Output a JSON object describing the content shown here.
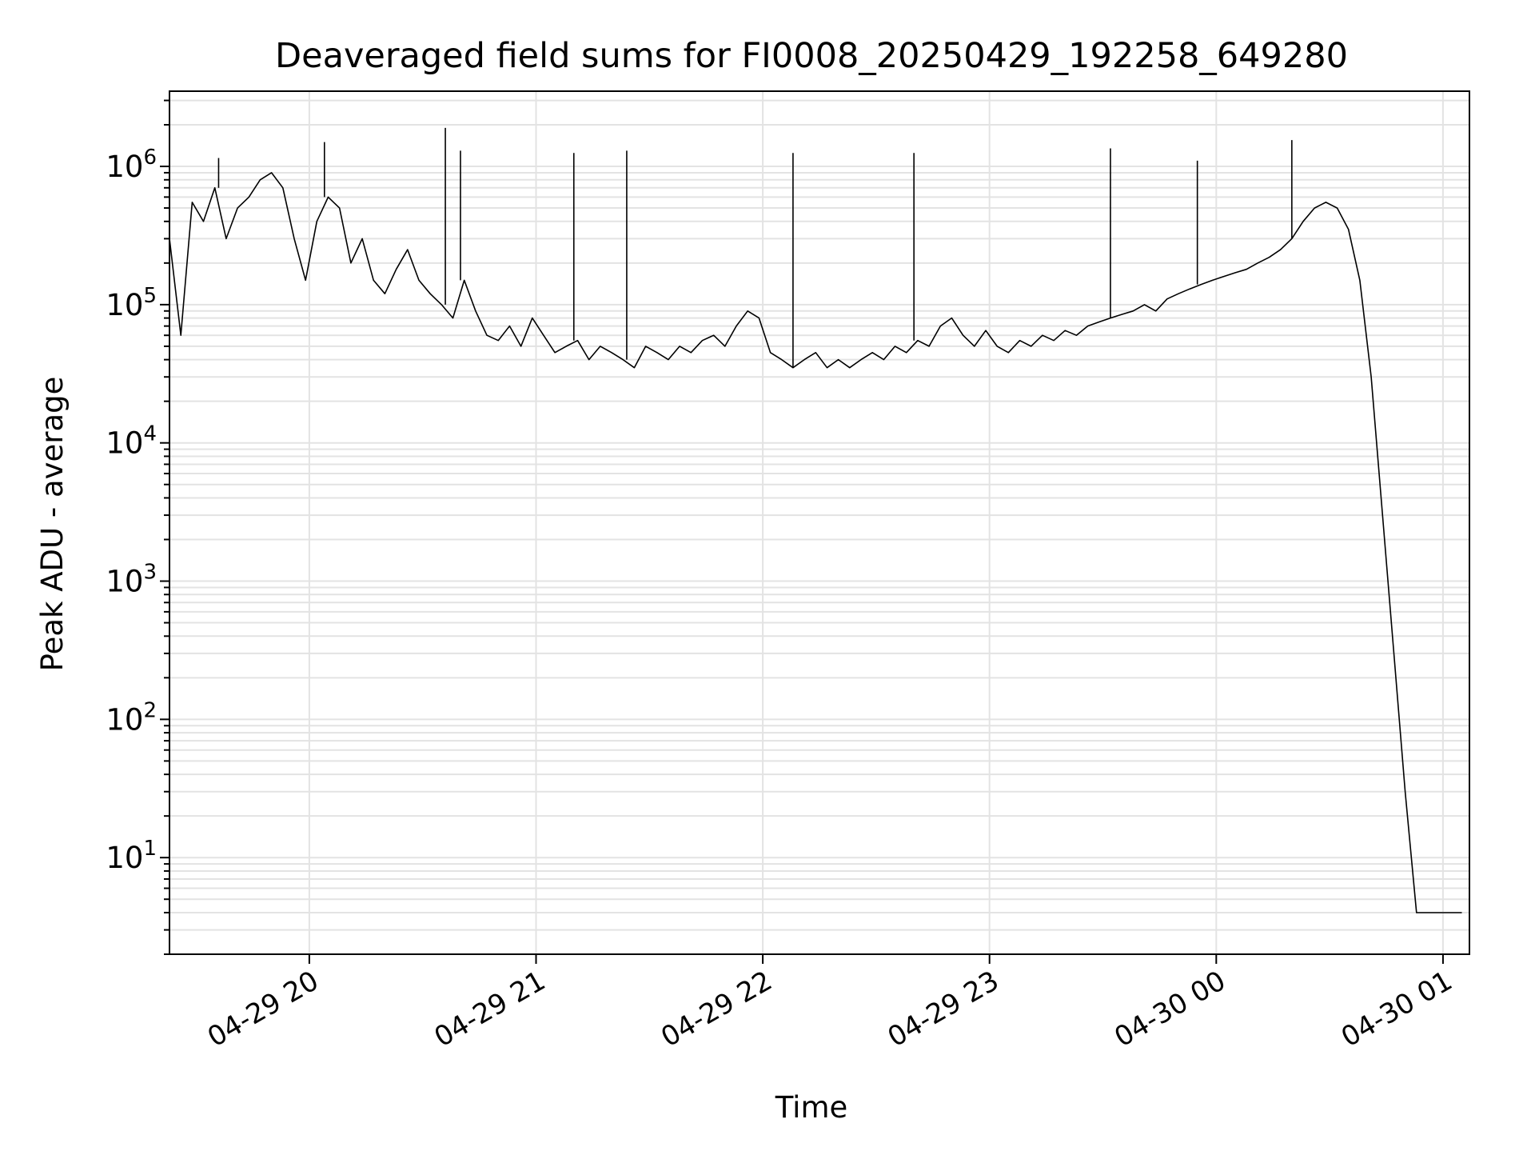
{
  "chart_data": {
    "type": "line",
    "title": "Deaveraged field sums for FI0008_20250429_192258_649280",
    "xlabel": "Time",
    "ylabel": "Peak ADU - average",
    "yscale": "log",
    "ylim": [
      2,
      3500000
    ],
    "xlim": [
      "2025-04-29 19:23",
      "2025-04-30 01:07"
    ],
    "grid": true,
    "line_color": "#000000",
    "grid_color": "#e3e3e3",
    "x_ticks": [
      {
        "value": "2025-04-29 20:00",
        "label": "04-29 20"
      },
      {
        "value": "2025-04-29 21:00",
        "label": "04-29 21"
      },
      {
        "value": "2025-04-29 22:00",
        "label": "04-29 22"
      },
      {
        "value": "2025-04-29 23:00",
        "label": "04-29 23"
      },
      {
        "value": "2025-04-30 00:00",
        "label": "04-30 00"
      },
      {
        "value": "2025-04-30 01:00",
        "label": "04-30 01"
      }
    ],
    "y_ticks": [
      {
        "value": 10,
        "base": "10",
        "exp": "1"
      },
      {
        "value": 100,
        "base": "10",
        "exp": "2"
      },
      {
        "value": 1000,
        "base": "10",
        "exp": "3"
      },
      {
        "value": 10000,
        "base": "10",
        "exp": "4"
      },
      {
        "value": 100000,
        "base": "10",
        "exp": "5"
      },
      {
        "value": 1000000,
        "base": "10",
        "exp": "6"
      }
    ],
    "series": [
      {
        "x": [
          "2025-04-29 19:23",
          "2025-04-29 19:26",
          "2025-04-29 19:29",
          "2025-04-29 19:32",
          "2025-04-29 19:35",
          "2025-04-29 19:38",
          "2025-04-29 19:41",
          "2025-04-29 19:44",
          "2025-04-29 19:47",
          "2025-04-29 19:50",
          "2025-04-29 19:53",
          "2025-04-29 19:56",
          "2025-04-29 19:59",
          "2025-04-29 20:02",
          "2025-04-29 20:05",
          "2025-04-29 20:08",
          "2025-04-29 20:11",
          "2025-04-29 20:14",
          "2025-04-29 20:17",
          "2025-04-29 20:20",
          "2025-04-29 20:23",
          "2025-04-29 20:26",
          "2025-04-29 20:29",
          "2025-04-29 20:32",
          "2025-04-29 20:35",
          "2025-04-29 20:38",
          "2025-04-29 20:41",
          "2025-04-29 20:44",
          "2025-04-29 20:47",
          "2025-04-29 20:50",
          "2025-04-29 20:53",
          "2025-04-29 20:56",
          "2025-04-29 20:59",
          "2025-04-29 21:02",
          "2025-04-29 21:05",
          "2025-04-29 21:08",
          "2025-04-29 21:11",
          "2025-04-29 21:14",
          "2025-04-29 21:17",
          "2025-04-29 21:20",
          "2025-04-29 21:23",
          "2025-04-29 21:26",
          "2025-04-29 21:29",
          "2025-04-29 21:32",
          "2025-04-29 21:35",
          "2025-04-29 21:38",
          "2025-04-29 21:41",
          "2025-04-29 21:44",
          "2025-04-29 21:47",
          "2025-04-29 21:50",
          "2025-04-29 21:53",
          "2025-04-29 21:56",
          "2025-04-29 21:59",
          "2025-04-29 22:02",
          "2025-04-29 22:05",
          "2025-04-29 22:08",
          "2025-04-29 22:11",
          "2025-04-29 22:14",
          "2025-04-29 22:17",
          "2025-04-29 22:20",
          "2025-04-29 22:23",
          "2025-04-29 22:26",
          "2025-04-29 22:29",
          "2025-04-29 22:32",
          "2025-04-29 22:35",
          "2025-04-29 22:38",
          "2025-04-29 22:41",
          "2025-04-29 22:44",
          "2025-04-29 22:47",
          "2025-04-29 22:50",
          "2025-04-29 22:53",
          "2025-04-29 22:56",
          "2025-04-29 22:59",
          "2025-04-29 23:02",
          "2025-04-29 23:05",
          "2025-04-29 23:08",
          "2025-04-29 23:11",
          "2025-04-29 23:14",
          "2025-04-29 23:17",
          "2025-04-29 23:20",
          "2025-04-29 23:23",
          "2025-04-29 23:26",
          "2025-04-29 23:29",
          "2025-04-29 23:32",
          "2025-04-29 23:35",
          "2025-04-29 23:38",
          "2025-04-29 23:41",
          "2025-04-29 23:44",
          "2025-04-29 23:47",
          "2025-04-29 23:50",
          "2025-04-29 23:53",
          "2025-04-29 23:56",
          "2025-04-29 23:59",
          "2025-04-30 00:02",
          "2025-04-30 00:05",
          "2025-04-30 00:08",
          "2025-04-30 00:11",
          "2025-04-30 00:14",
          "2025-04-30 00:17",
          "2025-04-30 00:20",
          "2025-04-30 00:23",
          "2025-04-30 00:26",
          "2025-04-30 00:29",
          "2025-04-30 00:32",
          "2025-04-30 00:35",
          "2025-04-30 00:38",
          "2025-04-30 00:41",
          "2025-04-30 00:44",
          "2025-04-30 00:47",
          "2025-04-30 00:50",
          "2025-04-30 00:53",
          "2025-04-30 00:56",
          "2025-04-30 00:59",
          "2025-04-30 01:02",
          "2025-04-30 01:05"
        ],
        "y": [
          300000,
          60000,
          550000,
          400000,
          700000,
          300000,
          500000,
          600000,
          800000,
          900000,
          700000,
          300000,
          150000,
          400000,
          600000,
          500000,
          200000,
          300000,
          150000,
          120000,
          180000,
          250000,
          150000,
          120000,
          100000,
          80000,
          150000,
          90000,
          60000,
          55000,
          70000,
          50000,
          80000,
          60000,
          45000,
          50000,
          55000,
          40000,
          50000,
          45000,
          40000,
          35000,
          50000,
          45000,
          40000,
          50000,
          45000,
          55000,
          60000,
          50000,
          70000,
          90000,
          80000,
          45000,
          40000,
          35000,
          40000,
          45000,
          35000,
          40000,
          35000,
          40000,
          45000,
          40000,
          50000,
          45000,
          55000,
          50000,
          70000,
          80000,
          60000,
          50000,
          65000,
          50000,
          45000,
          55000,
          50000,
          60000,
          55000,
          65000,
          60000,
          70000,
          75000,
          80000,
          85000,
          90000,
          100000,
          90000,
          110000,
          120000,
          130000,
          140000,
          150000,
          160000,
          170000,
          180000,
          200000,
          220000,
          250000,
          300000,
          400000,
          500000,
          550000,
          500000,
          350000,
          150000,
          30000,
          3000,
          300,
          30,
          4,
          4,
          4,
          4,
          4
        ]
      }
    ],
    "spikes": [
      {
        "x": "2025-04-29 19:36",
        "y": 1150000
      },
      {
        "x": "2025-04-29 20:04",
        "y": 1500000
      },
      {
        "x": "2025-04-29 20:36",
        "y": 1900000
      },
      {
        "x": "2025-04-29 20:40",
        "y": 1300000
      },
      {
        "x": "2025-04-29 21:10",
        "y": 1250000
      },
      {
        "x": "2025-04-29 21:24",
        "y": 1300000
      },
      {
        "x": "2025-04-29 22:08",
        "y": 1250000
      },
      {
        "x": "2025-04-29 22:40",
        "y": 1250000
      },
      {
        "x": "2025-04-29 23:32",
        "y": 1350000
      },
      {
        "x": "2025-04-29 23:55",
        "y": 1100000
      },
      {
        "x": "2025-04-30 00:20",
        "y": 1550000
      }
    ]
  }
}
